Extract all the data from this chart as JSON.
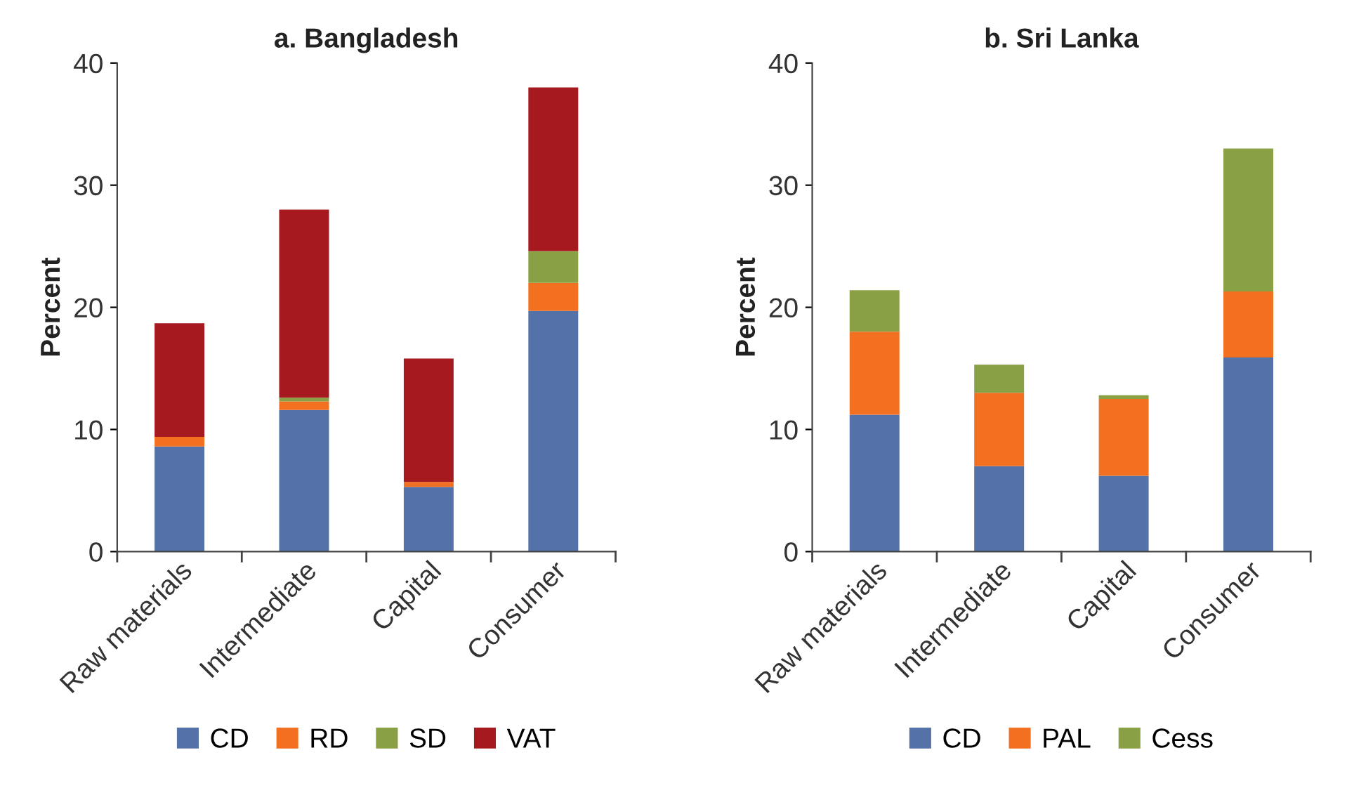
{
  "chart_data": [
    {
      "type": "bar",
      "title": "a. Bangladesh",
      "ylabel": "Percent",
      "categories": [
        "Raw materials",
        "Intermediate",
        "Capital",
        "Consumer"
      ],
      "stacked": true,
      "ylim": [
        0,
        40
      ],
      "yticks": [
        0,
        10,
        20,
        30,
        40
      ],
      "grid": false,
      "legend": "bottom",
      "series": [
        {
          "name": "CD",
          "color": "#5472a8",
          "values": [
            8.6,
            11.6,
            5.3,
            19.7
          ]
        },
        {
          "name": "RD",
          "color": "#f37021",
          "values": [
            0.8,
            0.7,
            0.4,
            2.3
          ]
        },
        {
          "name": "SD",
          "color": "#8aa045",
          "values": [
            0,
            0.3,
            0,
            2.6
          ]
        },
        {
          "name": "VAT",
          "color": "#a6191e",
          "values": [
            9.3,
            15.4,
            10.1,
            13.4
          ]
        }
      ]
    },
    {
      "type": "bar",
      "title": "b. Sri Lanka",
      "ylabel": "Percent",
      "categories": [
        "Raw materials",
        "Intermediate",
        "Capital",
        "Consumer"
      ],
      "stacked": true,
      "ylim": [
        0,
        40
      ],
      "yticks": [
        0,
        10,
        20,
        30,
        40
      ],
      "grid": false,
      "legend": "bottom",
      "series": [
        {
          "name": "CD",
          "color": "#5472a8",
          "values": [
            11.2,
            7.0,
            6.2,
            15.9
          ]
        },
        {
          "name": "PAL",
          "color": "#f37021",
          "values": [
            6.8,
            6.0,
            6.3,
            5.4
          ]
        },
        {
          "name": "Cess",
          "color": "#8aa045",
          "values": [
            3.4,
            2.3,
            0.3,
            11.7
          ]
        }
      ]
    }
  ]
}
